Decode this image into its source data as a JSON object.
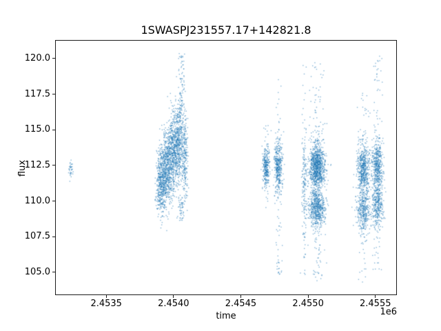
{
  "chart_data": {
    "type": "scatter",
    "title": "1SWASPJ231557.17+142821.8",
    "xlabel": "time",
    "ylabel": "flux",
    "x_offset_label": "1e6",
    "xlim": [
      2453120,
      2455660
    ],
    "ylim": [
      103.4,
      121.3
    ],
    "xticks": [
      2453500,
      2454000,
      2454500,
      2455000,
      2455500
    ],
    "xtick_labels": [
      "2.4535",
      "2.4540",
      "2.4545",
      "2.4550",
      "2.4555"
    ],
    "yticks": [
      105.0,
      107.5,
      110.0,
      112.5,
      115.0,
      117.5,
      120.0
    ],
    "ytick_labels": [
      "105.0",
      "107.5",
      "110.0",
      "112.5",
      "115.0",
      "117.5",
      "120.0"
    ],
    "grid": false,
    "legend": null,
    "marker_color": "#1f77b4",
    "marker_alpha": 0.55,
    "marker_size": 1.4,
    "seed": 42,
    "clusters": [
      {
        "n": 35,
        "x": {
          "dist": "normal",
          "mean": 2453230,
          "sd": 8
        },
        "y": {
          "dist": "normal",
          "mean": 112.3,
          "sd": 0.28
        }
      },
      {
        "n": 450,
        "x": {
          "dist": "normal",
          "mean": 2453905,
          "sd": 20
        },
        "y": {
          "dist": "normal",
          "mean": 111.3,
          "sd": 1.1
        }
      },
      {
        "n": 550,
        "x": {
          "dist": "normal",
          "mean": 2453950,
          "sd": 22
        },
        "y": {
          "dist": "normal",
          "mean": 112.3,
          "sd": 1.4
        }
      },
      {
        "n": 550,
        "x": {
          "dist": "normal",
          "mean": 2454000,
          "sd": 22
        },
        "y": {
          "dist": "normal",
          "mean": 113.6,
          "sd": 1.4
        }
      },
      {
        "n": 400,
        "x": {
          "dist": "normal",
          "mean": 2454045,
          "sd": 18
        },
        "y": {
          "dist": "normal",
          "mean": 114.3,
          "sd": 1.5
        }
      },
      {
        "n": 60,
        "x": {
          "dist": "normal",
          "mean": 2454060,
          "sd": 12
        },
        "y": {
          "dist": "uniform",
          "min": 116.5,
          "max": 120.4
        }
      },
      {
        "n": 50,
        "x": {
          "dist": "normal",
          "mean": 2454055,
          "sd": 12
        },
        "y": {
          "dist": "uniform",
          "min": 108.5,
          "max": 110.3
        }
      },
      {
        "n": 180,
        "x": {
          "dist": "normal",
          "mean": 2454085,
          "sd": 10
        },
        "y": {
          "dist": "normal",
          "mean": 112.8,
          "sd": 1.6
        }
      },
      {
        "n": 280,
        "x": {
          "dist": "normal",
          "mean": 2454690,
          "sd": 12
        },
        "y": {
          "dist": "normal",
          "mean": 112.4,
          "sd": 0.75
        }
      },
      {
        "n": 25,
        "x": {
          "dist": "normal",
          "mean": 2454690,
          "sd": 10
        },
        "y": {
          "dist": "uniform",
          "min": 109.5,
          "max": 115.5
        }
      },
      {
        "n": 380,
        "x": {
          "dist": "normal",
          "mean": 2454780,
          "sd": 15
        },
        "y": {
          "dist": "normal",
          "mean": 112.4,
          "sd": 1.0
        }
      },
      {
        "n": 55,
        "x": {
          "dist": "normal",
          "mean": 2454780,
          "sd": 12
        },
        "y": {
          "dist": "uniform",
          "min": 104.4,
          "max": 119.0
        }
      },
      {
        "n": 120,
        "x": {
          "dist": "normal",
          "mean": 2454975,
          "sd": 10
        },
        "y": {
          "dist": "normal",
          "mean": 111.5,
          "sd": 1.8
        }
      },
      {
        "n": 50,
        "x": {
          "dist": "normal",
          "mean": 2454975,
          "sd": 9
        },
        "y": {
          "dist": "uniform",
          "min": 104.5,
          "max": 120.0
        }
      },
      {
        "n": 900,
        "x": {
          "dist": "normal",
          "mean": 2455070,
          "sd": 30
        },
        "y": {
          "dist": "normal",
          "mean": 112.4,
          "sd": 0.8
        }
      },
      {
        "n": 550,
        "x": {
          "dist": "normal",
          "mean": 2455070,
          "sd": 30
        },
        "y": {
          "dist": "normal",
          "mean": 109.5,
          "sd": 0.65
        }
      },
      {
        "n": 170,
        "x": {
          "dist": "normal",
          "mean": 2455070,
          "sd": 27
        },
        "y": {
          "dist": "uniform",
          "min": 104.3,
          "max": 120.0
        }
      },
      {
        "n": 500,
        "x": {
          "dist": "normal",
          "mean": 2455415,
          "sd": 25
        },
        "y": {
          "dist": "normal",
          "mean": 112.3,
          "sd": 0.85
        }
      },
      {
        "n": 350,
        "x": {
          "dist": "normal",
          "mean": 2455415,
          "sd": 25
        },
        "y": {
          "dist": "normal",
          "mean": 109.4,
          "sd": 0.8
        }
      },
      {
        "n": 80,
        "x": {
          "dist": "normal",
          "mean": 2455415,
          "sd": 22
        },
        "y": {
          "dist": "uniform",
          "min": 104.2,
          "max": 118.0
        }
      },
      {
        "n": 450,
        "x": {
          "dist": "normal",
          "mean": 2455520,
          "sd": 20
        },
        "y": {
          "dist": "normal",
          "mean": 112.4,
          "sd": 0.9
        }
      },
      {
        "n": 300,
        "x": {
          "dist": "normal",
          "mean": 2455520,
          "sd": 20
        },
        "y": {
          "dist": "normal",
          "mean": 109.6,
          "sd": 0.8
        }
      },
      {
        "n": 90,
        "x": {
          "dist": "normal",
          "mean": 2455520,
          "sd": 18
        },
        "y": {
          "dist": "uniform",
          "min": 105.0,
          "max": 120.3
        }
      }
    ]
  }
}
